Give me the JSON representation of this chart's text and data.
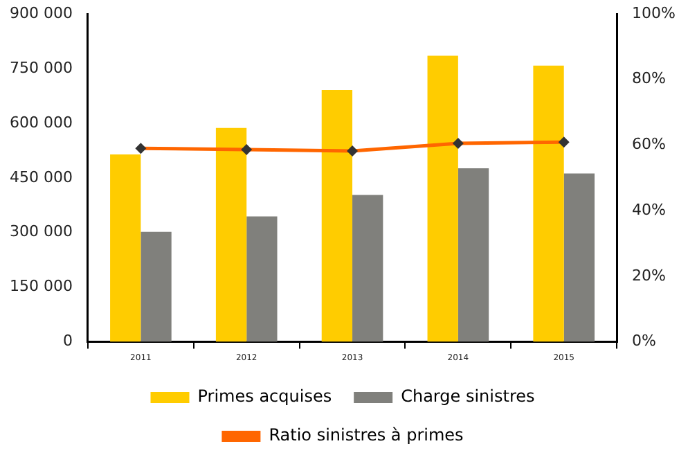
{
  "chart_data": {
    "type": "bar",
    "categories": [
      "2011",
      "2012",
      "2013",
      "2014",
      "2015"
    ],
    "series": [
      {
        "name": "Primes acquises",
        "color": "#ffcc00",
        "values": [
          514000,
          587000,
          691000,
          785000,
          758000
        ]
      },
      {
        "name": "Charge sinistres",
        "color": "#80807c",
        "values": [
          302000,
          344000,
          403000,
          476000,
          462000
        ]
      },
      {
        "name": "Ratio sinistres à primes",
        "type": "line",
        "axis": "y2",
        "color": "#ff6600",
        "values": [
          59.0,
          58.6,
          58.2,
          60.5,
          60.9
        ]
      }
    ],
    "ylim": [
      0,
      900000
    ],
    "yticks": [
      {
        "value": 0,
        "label": "0"
      },
      {
        "value": 150000,
        "label": "150 000"
      },
      {
        "value": 300000,
        "label": "300 000"
      },
      {
        "value": 450000,
        "label": "450 000"
      },
      {
        "value": 600000,
        "label": "600 000"
      },
      {
        "value": 750000,
        "label": "750 000"
      },
      {
        "value": 900000,
        "label": "900 000"
      }
    ],
    "y2lim": [
      0,
      100
    ],
    "y2ticks": [
      {
        "value": 0,
        "label": "0%"
      },
      {
        "value": 20,
        "label": "20%"
      },
      {
        "value": 40,
        "label": "40%"
      },
      {
        "value": 60,
        "label": "60%"
      },
      {
        "value": 80,
        "label": "80%"
      },
      {
        "value": 100,
        "label": "100%"
      }
    ],
    "grid": false,
    "legend": "bottom",
    "marker": "diamond"
  }
}
